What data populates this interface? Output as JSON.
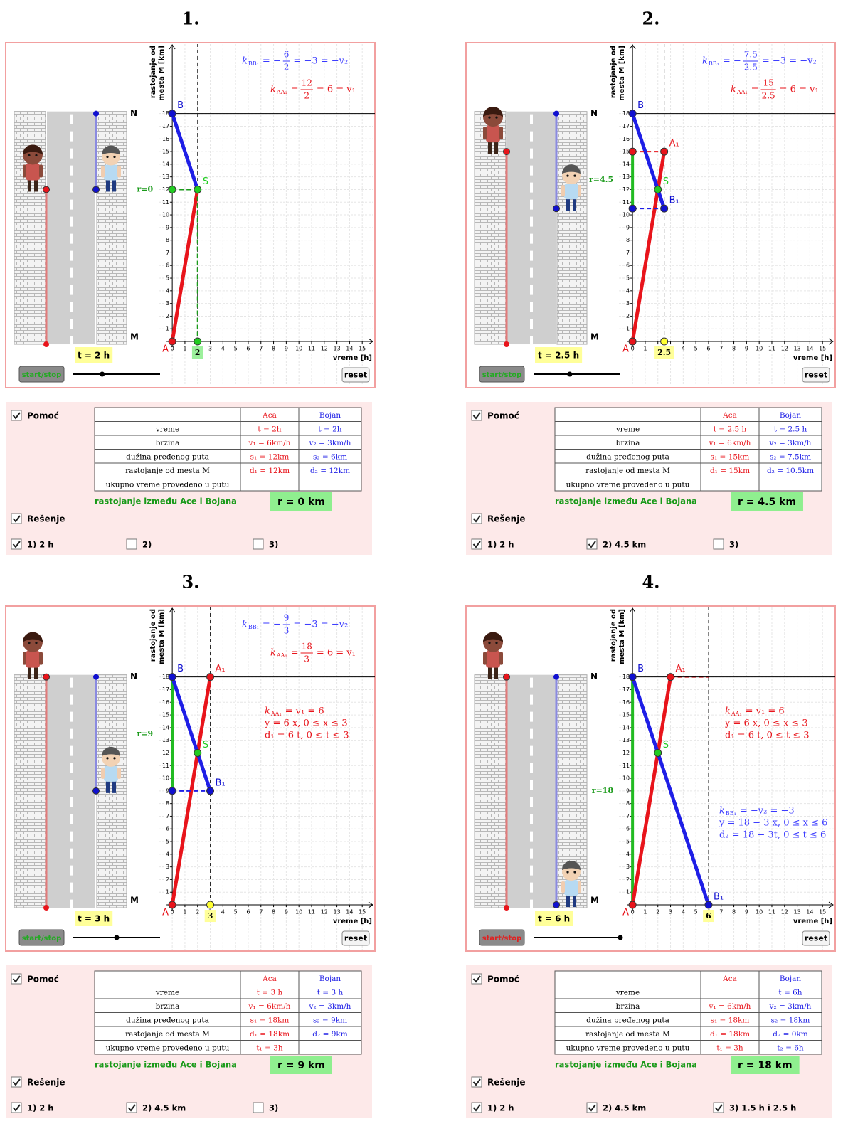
{
  "axes": {
    "xlim": [
      -13.15,
      16.0
    ],
    "ylim": [
      -3.65,
      23.6
    ],
    "xticks": [
      0,
      1,
      2,
      3,
      4,
      5,
      6,
      7,
      8,
      9,
      10,
      11,
      12,
      13,
      14,
      15
    ],
    "yticks": [
      1,
      2,
      3,
      4,
      5,
      6,
      7,
      8,
      9,
      10,
      11,
      12,
      13,
      14,
      15,
      16,
      17,
      18
    ],
    "x_label": "vreme [h]",
    "y_label": [
      "rastojanje od",
      "mesta M [km]"
    ],
    "road_top": "N",
    "road_bottom": "M",
    "grid": true
  },
  "slider": {
    "min": 0,
    "max": 6
  },
  "labels": {
    "start": "start/stop",
    "reset": "reset",
    "help": "Pomoć",
    "solution": "Rešenje",
    "distance": "rastojanje između Ace i Bojana",
    "table_header": [
      "Aca",
      "Bojan"
    ],
    "row_labels": [
      "vreme",
      "brzina",
      "dužina pređenog puta",
      "rastojanje od mesta M",
      "ukupno vreme provedeno u putu"
    ]
  },
  "panels": [
    {
      "title": "1.",
      "t": 2,
      "t_label": "t = 2 h",
      "t_box_color": "#9cf09c",
      "start_color": "#22aa22",
      "d1": 12,
      "d2": 12,
      "gap": [
        12,
        12
      ],
      "r_label": "r=0",
      "lines": [
        {
          "color": "#e8141b",
          "style": "thick",
          "x": [
            0,
            2
          ],
          "y": [
            0,
            12
          ]
        },
        {
          "color": "#1e1ee6",
          "style": "thick",
          "x": [
            0,
            2
          ],
          "y": [
            18,
            12
          ]
        },
        {
          "color": "#1a9a1a",
          "style": "dashed",
          "x": [
            0,
            2
          ],
          "y": [
            12,
            12
          ]
        },
        {
          "color": "#1a9a1a",
          "style": "dashed",
          "x": [
            2,
            2
          ],
          "y": [
            12,
            0
          ]
        },
        {
          "color": "#000000",
          "style": "thin",
          "x": [
            0,
            16
          ],
          "y": [
            18,
            18
          ]
        }
      ],
      "points": [
        {
          "label": "A",
          "color": "#e8141b",
          "x": 0,
          "y": 0
        },
        {
          "label": "B",
          "color": "#1010d0",
          "x": 0,
          "y": 18
        },
        {
          "color": "#22cc22",
          "x": 0,
          "y": 12
        },
        {
          "color": "#22cc22",
          "x": 2,
          "y": 0
        },
        {
          "label": "S",
          "color": "#22cc22",
          "x": 2,
          "y": 12
        }
      ],
      "formulas": [
        {
          "color": "#3939ff",
          "k": "k",
          "sub": "BB₁",
          "pre": "= −",
          "num": "6",
          "den": "2",
          "post": "= −3 = −v₂"
        },
        {
          "color": "#e8141b",
          "k": "k",
          "sub": "AA₁",
          "pre": "=",
          "num": "12",
          "den": "2",
          "post": "= 6 = v₁"
        }
      ],
      "notes": [],
      "table": [
        [
          "t = 2h",
          "t = 2h"
        ],
        [
          "v₁ = 6km/h",
          "v₂ = 3km/h"
        ],
        [
          "s₁ = 12km",
          "s₂ = 6km"
        ],
        [
          "d₁ = 12km",
          "d₂ = 12km"
        ],
        [
          null,
          null
        ]
      ],
      "result": "r = 0 km",
      "help_checked": true,
      "solution_checked": true,
      "answers": [
        {
          "text": "1)  2 h",
          "checked": true
        },
        {
          "text": "2)",
          "checked": false
        },
        {
          "text": "3)",
          "checked": false
        }
      ]
    },
    {
      "title": "2.",
      "t": 2.5,
      "t_label": "t = 2.5 h",
      "t_box_color": "#ffff99",
      "start_color": "#22aa22",
      "d1": 15,
      "d2": 10.5,
      "gap": [
        10.5,
        15
      ],
      "r_label": "r=4.5",
      "lines": [
        {
          "color": "#e8141b",
          "style": "thick",
          "x": [
            0,
            2.5
          ],
          "y": [
            0,
            15
          ]
        },
        {
          "color": "#1e1ee6",
          "style": "thick",
          "x": [
            0,
            2.5
          ],
          "y": [
            18,
            10.5
          ]
        },
        {
          "color": "#e8141b",
          "style": "dashed",
          "x": [
            0,
            2.5
          ],
          "y": [
            15,
            15
          ]
        },
        {
          "color": "#1e1ee6",
          "style": "dashed",
          "x": [
            0,
            2.5
          ],
          "y": [
            10.5,
            10.5
          ]
        },
        {
          "color": "#000000",
          "style": "thin",
          "x": [
            0,
            16
          ],
          "y": [
            18,
            18
          ]
        }
      ],
      "points": [
        {
          "label": "A",
          "color": "#e8141b",
          "x": 0,
          "y": 0
        },
        {
          "label": "B",
          "color": "#1010d0",
          "x": 0,
          "y": 18
        },
        {
          "color": "#e8141b",
          "x": 0,
          "y": 15
        },
        {
          "color": "#1010d0",
          "x": 0,
          "y": 10.5
        },
        {
          "label": "A₁",
          "color": "#e8141b",
          "x": 2.5,
          "y": 15
        },
        {
          "label": "B₁",
          "color": "#1010d0",
          "x": 2.5,
          "y": 10.5
        },
        {
          "color": "#ffff33",
          "x": 2.5,
          "y": 0
        },
        {
          "label": "S",
          "color": "#22cc22",
          "x": 2,
          "y": 12
        }
      ],
      "formulas": [
        {
          "color": "#3939ff",
          "k": "k",
          "sub": "BB₁",
          "pre": "= −",
          "num": "7.5",
          "den": "2.5",
          "post": "= −3 = −v₂"
        },
        {
          "color": "#e8141b",
          "k": "k",
          "sub": "AA₁",
          "pre": "=",
          "num": "15",
          "den": "2.5",
          "post": "= 6 = v₁"
        }
      ],
      "notes": [],
      "table": [
        [
          "t  =  2.5 h",
          "t  =  2.5 h"
        ],
        [
          "v₁ = 6km/h",
          "v₂ = 3km/h"
        ],
        [
          "s₁ = 15km",
          "s₂ = 7.5km"
        ],
        [
          "d₁ = 15km",
          "d₂ = 10.5km"
        ],
        [
          null,
          null
        ]
      ],
      "result": "r = 4.5 km",
      "help_checked": true,
      "solution_checked": true,
      "answers": [
        {
          "text": "1)  2 h",
          "checked": true
        },
        {
          "text": "2)  4.5 km",
          "checked": true
        },
        {
          "text": "3)",
          "checked": false
        }
      ]
    },
    {
      "title": "3.",
      "t": 3,
      "t_label": "t = 3 h",
      "t_box_color": "#ffff99",
      "start_color": "#22aa22",
      "d1": 18,
      "d2": 9,
      "gap": [
        9,
        18
      ],
      "r_label": "r=9",
      "lines": [
        {
          "color": "#e8141b",
          "style": "thick",
          "x": [
            0,
            3
          ],
          "y": [
            0,
            18
          ]
        },
        {
          "color": "#1e1ee6",
          "style": "thick",
          "x": [
            0,
            3
          ],
          "y": [
            18,
            9
          ]
        },
        {
          "color": "#1e1ee6",
          "style": "dashed",
          "x": [
            0,
            3
          ],
          "y": [
            9,
            9
          ]
        },
        {
          "color": "#000000",
          "style": "thin",
          "x": [
            0,
            16
          ],
          "y": [
            18,
            18
          ]
        }
      ],
      "points": [
        {
          "label": "A",
          "color": "#e8141b",
          "x": 0,
          "y": 0
        },
        {
          "label": "B",
          "color": "#1010d0",
          "x": 0,
          "y": 18
        },
        {
          "color": "#1010d0",
          "x": 0,
          "y": 9
        },
        {
          "label": "A₁",
          "color": "#e8141b",
          "x": 3,
          "y": 18
        },
        {
          "label": "B₁",
          "color": "#1010d0",
          "x": 3,
          "y": 9
        },
        {
          "color": "#ffff33",
          "x": 3,
          "y": 0
        },
        {
          "label": "S",
          "color": "#22cc22",
          "x": 2,
          "y": 12
        }
      ],
      "formulas": [
        {
          "color": "#3939ff",
          "k": "k",
          "sub": "BB₁",
          "pre": "= −",
          "num": "9",
          "den": "3",
          "post": "= −3 = −v₂"
        },
        {
          "color": "#e8141b",
          "k": "k",
          "sub": "AA₁",
          "pre": "=",
          "num": "18",
          "den": "3",
          "post": "= 6 = v₁"
        }
      ],
      "notes": [
        {
          "color": "#e8141b",
          "lines": [
            {
              "k": "k",
              "sub": "AA₁",
              "text": "= v₁ = 6"
            },
            {
              "text": "y = 6 x,  0 ≤ x ≤ 3"
            },
            {
              "text": "d₁ = 6 t,  0 ≤ t ≤ 3"
            }
          ]
        }
      ],
      "table": [
        [
          "t  =  3 h",
          "t  =  3 h"
        ],
        [
          "v₁ = 6km/h",
          "v₂ = 3km/h"
        ],
        [
          "s₁ = 18km",
          "s₂ = 9km"
        ],
        [
          "d₁ = 18km",
          "d₂ = 9km"
        ],
        [
          "t₁ = 3h",
          null
        ]
      ],
      "result": "r = 9 km",
      "help_checked": true,
      "solution_checked": true,
      "answers": [
        {
          "text": "1)  2 h",
          "checked": true
        },
        {
          "text": "2)  4.5 km",
          "checked": true
        },
        {
          "text": "3)",
          "checked": false
        }
      ]
    },
    {
      "title": "4.",
      "t": 6,
      "t_label": "t = 6 h",
      "t_box_color": "#ffff99",
      "start_color": "#e02020",
      "d1": 18,
      "d2": 0,
      "gap": [
        0,
        18
      ],
      "r_label": "r=18",
      "lines": [
        {
          "color": "#e8141b",
          "style": "thick",
          "x": [
            0,
            3
          ],
          "y": [
            0,
            18
          ]
        },
        {
          "color": "#e8141b",
          "style": "dashed",
          "x": [
            3,
            6
          ],
          "y": [
            18,
            18
          ]
        },
        {
          "color": "#1e1ee6",
          "style": "thick",
          "x": [
            0,
            6
          ],
          "y": [
            18,
            0
          ]
        },
        {
          "color": "#000000",
          "style": "thin",
          "x": [
            0,
            16
          ],
          "y": [
            18,
            18
          ]
        }
      ],
      "points": [
        {
          "label": "A",
          "color": "#e8141b",
          "x": 0,
          "y": 0
        },
        {
          "label": "B",
          "color": "#1010d0",
          "x": 0,
          "y": 18
        },
        {
          "label": "A₁",
          "color": "#e8141b",
          "x": 3,
          "y": 18
        },
        {
          "label": "B₁",
          "color": "#1010d0",
          "x": 6,
          "y": 0
        },
        {
          "label": "S",
          "color": "#22cc22",
          "x": 2,
          "y": 12
        }
      ],
      "formulas": [],
      "notes": [
        {
          "color": "#e8141b",
          "lines": [
            {
              "k": "k",
              "sub": "AA₁",
              "text": "= v₁ = 6"
            },
            {
              "text": "y = 6 x,  0 ≤ x ≤ 3"
            },
            {
              "text": "d₁ = 6 t,  0 ≤ t ≤ 3"
            }
          ]
        },
        {
          "color": "#3939ff",
          "lines": [
            {
              "k": "k",
              "sub": "BB₁",
              "text": "= −v₂ = −3"
            },
            {
              "text": "y = 18 − 3 x,  0 ≤ x ≤ 6"
            },
            {
              "text": "d₂ = 18 − 3t,  0 ≤ t ≤ 6"
            }
          ]
        }
      ],
      "table": [
        [
          null,
          "t = 6h"
        ],
        [
          "v₁ = 6km/h",
          "v₂ = 3km/h"
        ],
        [
          "s₁ = 18km",
          "s₂ = 18km"
        ],
        [
          "d₁ = 18km",
          "d₂ = 0km"
        ],
        [
          "t₁ = 3h",
          "t₂ = 6h"
        ]
      ],
      "result": "r = 18 km",
      "help_checked": true,
      "solution_checked": true,
      "answers": [
        {
          "text": "1)  2 h",
          "checked": true
        },
        {
          "text": "2)  4.5 km",
          "checked": true
        },
        {
          "text": "3)  1.5 h   i  2.5 h",
          "checked": true
        }
      ]
    }
  ]
}
